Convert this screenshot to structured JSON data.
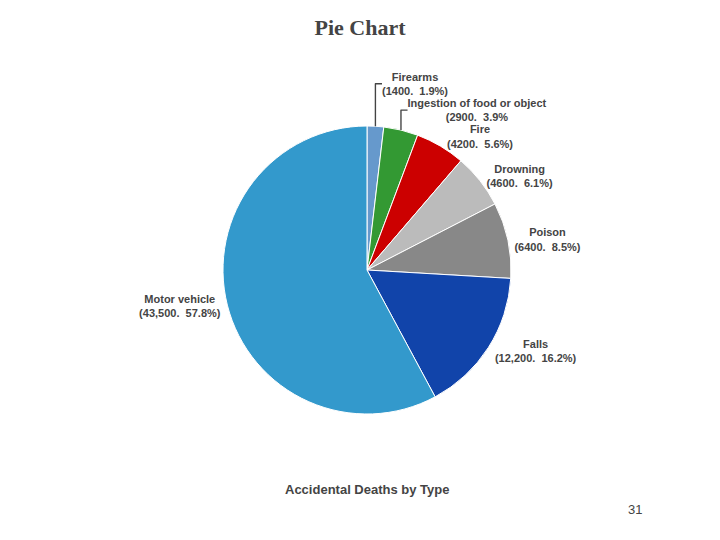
{
  "chart_data": {
    "type": "pie",
    "title": "Pie Chart",
    "subtitle": "Accidental Deaths by Type",
    "categories": [
      "Firearms",
      "Ingestion of food or object",
      "Fire",
      "Drowning",
      "Poison",
      "Falls",
      "Motor vehicle"
    ],
    "values": [
      1400,
      2900,
      4200,
      4600,
      6400,
      12200,
      43500
    ],
    "value_labels": [
      "Firearms\n(1400.  1.9%)",
      "Ingestion of food or object\n(2900.  3.9%",
      "Fire\n(4200.  5.6%)",
      "Drowning\n(4600.  6.1%)",
      "Poison\n(6400.  8.5%)",
      "Falls\n(12,200.  16.2%)",
      "Motor vehicle\n(43,500.  57.8%)"
    ],
    "colors": [
      "#6699CC",
      "#339933",
      "#CC0000",
      "#BBBBBB",
      "#888888",
      "#1144AA",
      "#3399CC"
    ],
    "data_labels": true,
    "annotations": [
      "31"
    ]
  }
}
